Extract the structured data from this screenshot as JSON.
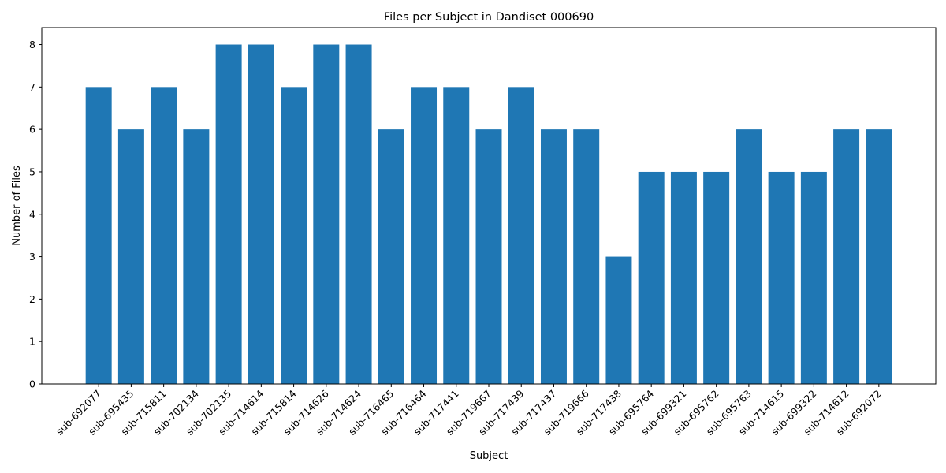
{
  "chart_data": {
    "type": "bar",
    "title": "Files per Subject in Dandiset 000690",
    "xlabel": "Subject",
    "ylabel": "Number of Files",
    "categories": [
      "sub-692077",
      "sub-695435",
      "sub-715811",
      "sub-702134",
      "sub-702135",
      "sub-714614",
      "sub-715814",
      "sub-714626",
      "sub-714624",
      "sub-716465",
      "sub-716464",
      "sub-717441",
      "sub-719667",
      "sub-717439",
      "sub-717437",
      "sub-719666",
      "sub-717438",
      "sub-695764",
      "sub-699321",
      "sub-695762",
      "sub-695763",
      "sub-714615",
      "sub-699322",
      "sub-714612",
      "sub-692072"
    ],
    "values": [
      7,
      6,
      7,
      6,
      8,
      8,
      7,
      8,
      8,
      6,
      7,
      7,
      6,
      7,
      6,
      6,
      3,
      5,
      5,
      5,
      6,
      5,
      5,
      6,
      6
    ],
    "ylim": [
      0,
      8.4
    ],
    "yticks": [
      0,
      1,
      2,
      3,
      4,
      5,
      6,
      7,
      8
    ],
    "bar_color": "#1f77b4",
    "grid": false,
    "x_tick_rotation_deg": 45
  }
}
